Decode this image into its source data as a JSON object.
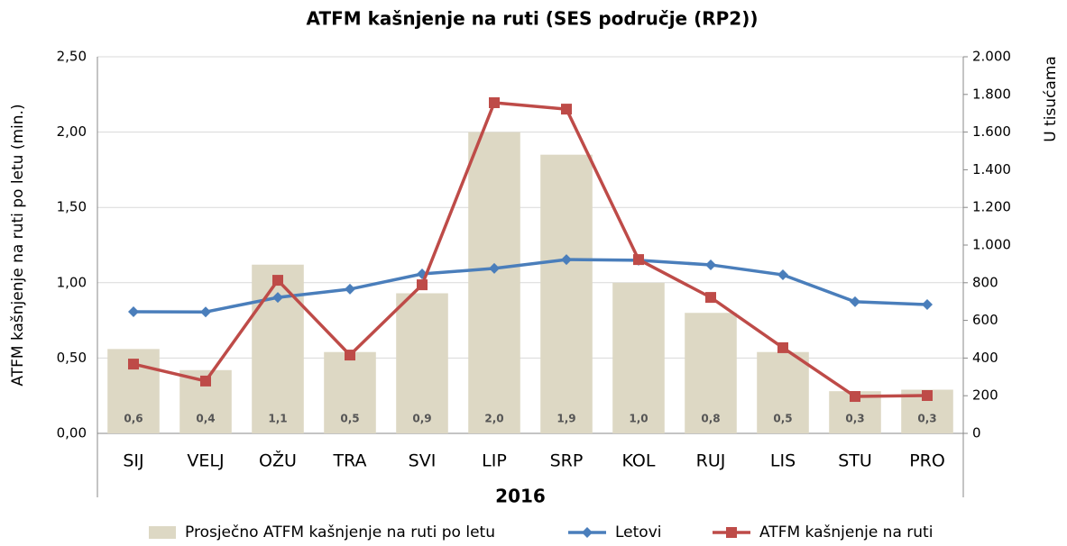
{
  "chart_data": {
    "type": "bar",
    "title": "ATFM kašnjenje na ruti (SES područje (RP2))",
    "xlabel": "2016",
    "ylabel": "ATFM kašnjenje na ruti po letu (min.)",
    "y2label": "U tisućama",
    "categories": [
      "SIJ",
      "VELJ",
      "OŽU",
      "TRA",
      "SVI",
      "LIP",
      "SRP",
      "KOL",
      "RUJ",
      "LIS",
      "STU",
      "PRO"
    ],
    "series": [
      {
        "name": "Prosječno ATFM kašnjenje na ruti po letu",
        "type": "bar",
        "axis": "y",
        "color": "#ddd8c4",
        "values": [
          0.56,
          0.42,
          1.12,
          0.54,
          0.93,
          2.0,
          1.85,
          1.0,
          0.8,
          0.54,
          0.28,
          0.29
        ],
        "value_labels": [
          "0,6",
          "0,4",
          "1,1",
          "0,5",
          "0,9",
          "2,0",
          "1,9",
          "1,0",
          "0,8",
          "0,5",
          "0,3",
          "0,3"
        ]
      },
      {
        "name": "Letovi",
        "type": "line",
        "axis": "y2",
        "color": "#4a7ebb",
        "marker": "diamond",
        "values": [
          646,
          645,
          722,
          766,
          847,
          876,
          923,
          919,
          895,
          842,
          699,
          684
        ]
      },
      {
        "name": "ATFM kašnjenje na ruti",
        "type": "line",
        "axis": "y2",
        "color": "#be4b48",
        "marker": "square",
        "values": [
          368,
          278,
          813,
          416,
          789,
          1756,
          1722,
          923,
          722,
          455,
          196,
          201
        ]
      }
    ],
    "ylim": [
      0,
      2.5
    ],
    "yticks": [
      {
        "value": 0,
        "label": "0,00"
      },
      {
        "value": 0.5,
        "label": "0,50"
      },
      {
        "value": 1,
        "label": "1,00"
      },
      {
        "value": 1.5,
        "label": "1,50"
      },
      {
        "value": 2,
        "label": "2,00"
      },
      {
        "value": 2.5,
        "label": "2,50"
      }
    ],
    "y2lim": [
      0,
      2000
    ],
    "y2ticks": [
      0,
      200,
      400,
      600,
      800,
      {
        "value": 1000,
        "label": "1.000"
      },
      {
        "value": 1200,
        "label": "1.200"
      },
      {
        "value": 1400,
        "label": "1.400"
      },
      {
        "value": 1600,
        "label": "1.600"
      },
      {
        "value": 1800,
        "label": "1.800"
      },
      {
        "value": 2000,
        "label": "2.000"
      }
    ],
    "grid": true,
    "legend": "bottom"
  }
}
